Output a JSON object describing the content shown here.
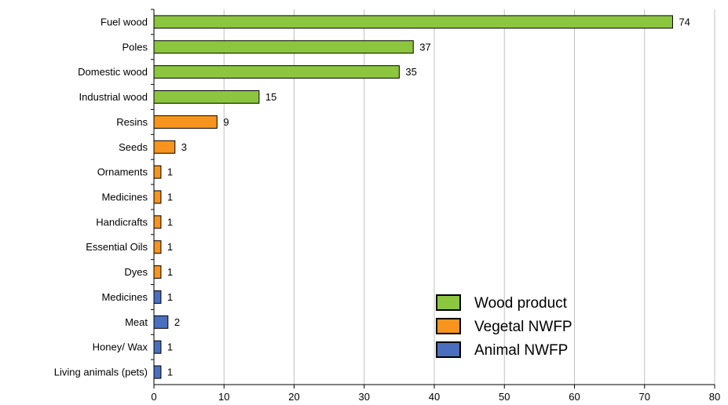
{
  "chart_data": {
    "type": "bar",
    "orientation": "horizontal",
    "categories": [
      "Fuel wood",
      "Poles",
      "Domestic wood",
      "Industrial wood",
      "Resins",
      "Seeds",
      "Ornaments",
      "Medicines",
      "Handicrafts",
      "Essential Oils",
      "Dyes",
      "Medicines",
      "Meat",
      "Honey/ Wax",
      "Living animals (pets)"
    ],
    "values": [
      74,
      37,
      35,
      15,
      9,
      3,
      1,
      1,
      1,
      1,
      1,
      1,
      2,
      1,
      1
    ],
    "groups": [
      "Wood product",
      "Wood product",
      "Wood product",
      "Wood product",
      "Vegetal NWFP",
      "Vegetal NWFP",
      "Vegetal NWFP",
      "Vegetal NWFP",
      "Vegetal NWFP",
      "Vegetal NWFP",
      "Vegetal NWFP",
      "Animal NWFP",
      "Animal NWFP",
      "Animal NWFP",
      "Animal NWFP"
    ],
    "legend": [
      {
        "name": "Wood product",
        "color": "#8cc63f"
      },
      {
        "name": "Vegetal NWFP",
        "color": "#f7941d"
      },
      {
        "name": "Animal NWFP",
        "color": "#4a6fbf"
      }
    ],
    "xlim": [
      0,
      80
    ],
    "xticks": [
      "0",
      "10",
      "20",
      "30",
      "40",
      "50",
      "60",
      "70",
      "80"
    ],
    "grid": "vertical",
    "legend_position": "bottom-right",
    "title": "",
    "xlabel": "",
    "ylabel": ""
  }
}
